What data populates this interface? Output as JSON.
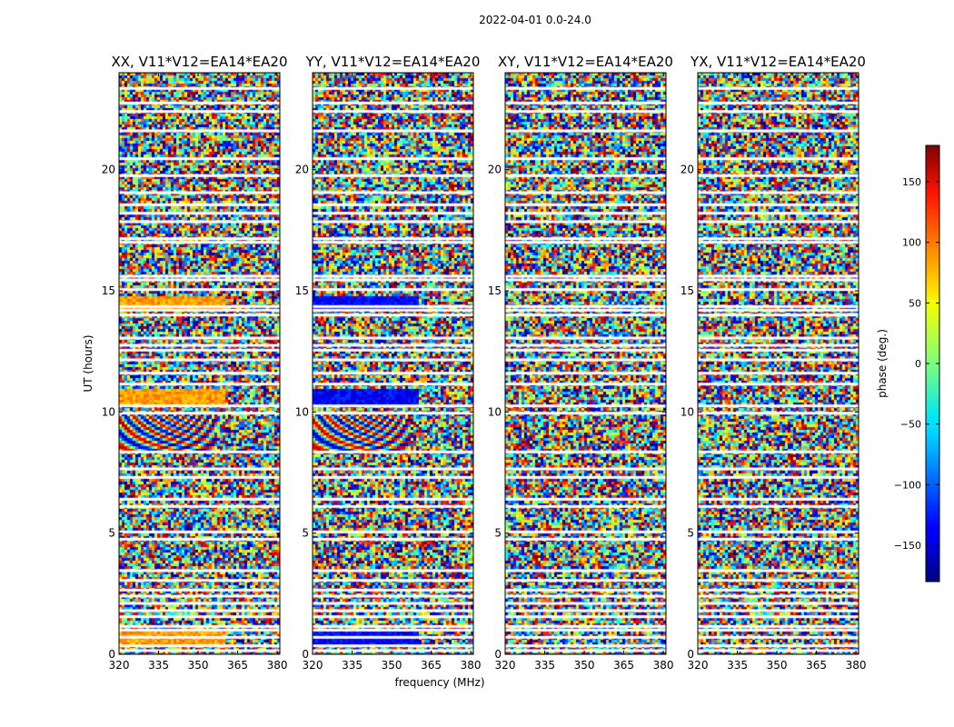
{
  "figure": {
    "suptitle": "2022-04-01 0.0-24.0",
    "xlabel": "frequency (MHz)",
    "ylabel": "UT (hours)"
  },
  "colorbar": {
    "label": "phase (deg.)",
    "range": [
      -180,
      180
    ],
    "ticks": [
      -150,
      -100,
      -50,
      0,
      50,
      100,
      150
    ],
    "tick_labels": [
      "−150",
      "−100",
      "−50",
      "0",
      "50",
      "100",
      "150"
    ],
    "colormap": "jet"
  },
  "chart_data": {
    "type": "heatmap",
    "xlim": [
      320,
      381
    ],
    "ylim": [
      0,
      24
    ],
    "x_ticks": [
      320,
      335,
      350,
      365,
      380
    ],
    "y_ticks": [
      0,
      5,
      10,
      15,
      20
    ],
    "value_units": "phase (deg.)",
    "panels": [
      {
        "title": "XX, V11*V12=EA14*EA20",
        "polarization": "XX"
      },
      {
        "title": "YY, V11*V12=EA14*EA20",
        "polarization": "YY"
      },
      {
        "title": "XY, V11*V12=EA14*EA20",
        "polarization": "XY"
      },
      {
        "title": "YX, V11*V12=EA14*EA20",
        "polarization": "YX"
      }
    ],
    "flagged_ut_hours": [
      0.15,
      0.35,
      0.7,
      1.0,
      1.15,
      1.55,
      1.8,
      2.1,
      2.4,
      2.65,
      3.05,
      3.45,
      4.75,
      5.05,
      6.1,
      6.4,
      7.3,
      7.65,
      8.35,
      9.95,
      10.25,
      11.15,
      11.6,
      12.15,
      12.55,
      12.75,
      13.05,
      14.0,
      14.2,
      14.35,
      15.05,
      15.45,
      15.6,
      17.0,
      17.15,
      17.85,
      18.2,
      18.55,
      19.05,
      19.75,
      20.45,
      21.6,
      22.4,
      22.75,
      23.35
    ],
    "coherent_features": [
      {
        "panels": [
          "XX",
          "YY"
        ],
        "ut_range": [
          8.4,
          10.0
        ],
        "description": "fringe pattern"
      },
      {
        "panels": [
          "XX",
          "YY"
        ],
        "ut_range": [
          10.3,
          11.0
        ],
        "description": "strong coherent band"
      },
      {
        "panels": [
          "XX",
          "YY"
        ],
        "ut_range": [
          14.3,
          14.8
        ],
        "description": "strong coherent band"
      },
      {
        "panels": [
          "XX",
          "YY"
        ],
        "ut_range": [
          0.4,
          1.0
        ],
        "description": "coherent band"
      }
    ]
  }
}
